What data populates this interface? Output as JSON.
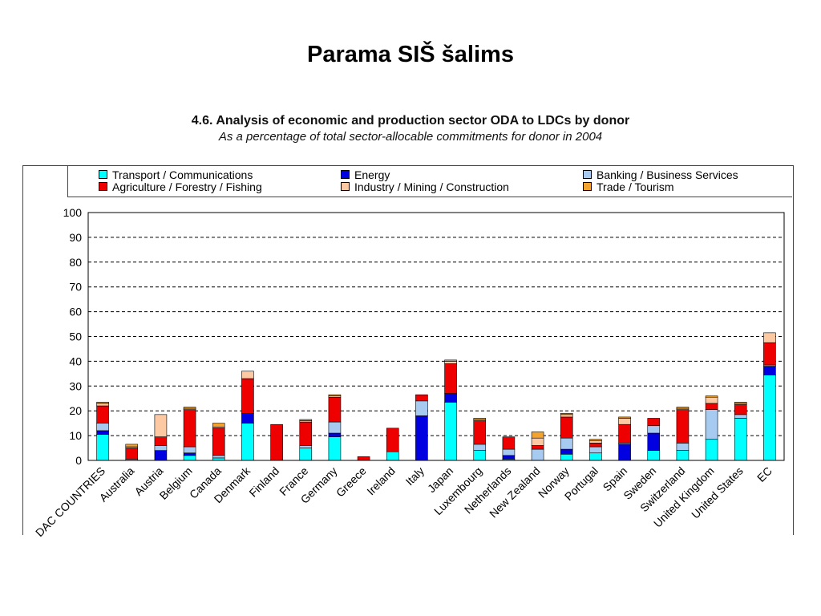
{
  "slide": {
    "title": "Parama SIŠ šalims"
  },
  "chart_data": {
    "type": "bar",
    "stacked": true,
    "title": "4.6. Analysis of economic and production sector ODA to LDCs by donor",
    "subtitle": "As a percentage of total sector-allocable commitments for donor in 2004",
    "xlabel": "",
    "ylabel": "",
    "ylim": [
      0,
      100
    ],
    "yticks": [
      0,
      10,
      20,
      30,
      40,
      50,
      60,
      70,
      80,
      90,
      100
    ],
    "grid": true,
    "legend_position": "top",
    "categories": [
      "DAC COUNTRIES",
      "Australia",
      "Austria",
      "Belgium",
      "Canada",
      "Denmark",
      "Finland",
      "France",
      "Germany",
      "Greece",
      "Ireland",
      "Italy",
      "Japan",
      "Luxembourg",
      "Netherlands",
      "New Zealand",
      "Norway",
      "Portugal",
      "Spain",
      "Sweden",
      "Switzerland",
      "United Kingdom",
      "United States",
      "EC"
    ],
    "category_labels_visible": [
      "DAC COUNTRIES",
      "Australia",
      "Austria",
      "Belgium",
      "Canada",
      "Denmark",
      "Finland",
      "France",
      "Germany",
      "Greece",
      "Ireland",
      "Italy",
      "Japan",
      "Luxembourg",
      "Netherlands",
      "New Zealand",
      "Norway",
      "Portugal",
      "Spain",
      "Sweden",
      "Switzerland",
      "United Kingdom",
      "United States",
      "EC"
    ],
    "series": [
      {
        "name": "Transport / Communications",
        "color": "#00ffff",
        "values": [
          10.5,
          0,
          0,
          2,
          1,
          15,
          0,
          5,
          9.5,
          0,
          3.5,
          0,
          23.5,
          4,
          0.5,
          0,
          2.5,
          3,
          0,
          4,
          4,
          8.5,
          17,
          34.5
        ]
      },
      {
        "name": "Energy",
        "color": "#0000e0",
        "values": [
          1.5,
          0,
          4,
          1,
          0,
          4,
          0,
          0,
          1.5,
          0,
          0,
          18,
          3.5,
          0,
          1.5,
          0,
          2,
          0,
          6.5,
          7,
          0,
          0,
          0,
          3.5
        ]
      },
      {
        "name": "Banking / Business Services",
        "color": "#a6caf0",
        "values": [
          3,
          0.5,
          2,
          2.5,
          1,
          0,
          0,
          1,
          4.5,
          0,
          0,
          6,
          0,
          2.5,
          2.5,
          4.5,
          4.5,
          2.5,
          0.5,
          3,
          3,
          12,
          1.5,
          0.5
        ]
      },
      {
        "name": "Agriculture / Forestry / Fishing",
        "color": "#ee0000",
        "values": [
          7,
          4.5,
          3.5,
          15,
          11,
          14,
          14.5,
          9.5,
          10,
          1.5,
          9.5,
          2.5,
          12,
          9.5,
          5,
          1.5,
          8.5,
          1.5,
          7.5,
          3,
          13.5,
          2.5,
          4,
          9
        ]
      },
      {
        "name": "Industry / Mining / Construction",
        "color": "#fcc9a3",
        "values": [
          1,
          0.5,
          9,
          0.5,
          0.5,
          3,
          0,
          0.5,
          0.5,
          0,
          0,
          0,
          1,
          0.5,
          0,
          3,
          1,
          1,
          2.5,
          0,
          0.5,
          2.5,
          0.5,
          4
        ]
      },
      {
        "name": "Trade / Tourism",
        "color": "#f2a330",
        "values": [
          0.5,
          1,
          0,
          0.5,
          1.5,
          0,
          0,
          0.5,
          0.5,
          0,
          0,
          0,
          0.5,
          0.5,
          0,
          2.5,
          0.5,
          0.5,
          0.5,
          0,
          0.5,
          0.5,
          0.5,
          0
        ]
      }
    ]
  }
}
